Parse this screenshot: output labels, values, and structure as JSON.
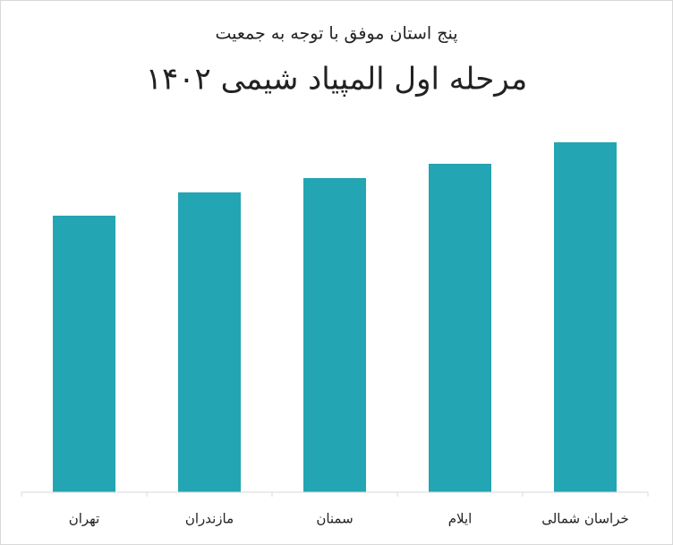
{
  "chart_data": {
    "type": "bar",
    "title": "مرحله اول المپیاد شیمی ۱۴۰۲",
    "subtitle": "پنج استان موفق با توجه به جمعیت",
    "categories": [
      "تهران",
      "مازندران",
      "سمنان",
      "ایلام",
      "خراسان شمالی"
    ],
    "values": [
      309,
      335,
      351,
      367,
      391
    ],
    "color": "#23a5b3",
    "ylim": [
      0,
      400
    ]
  }
}
